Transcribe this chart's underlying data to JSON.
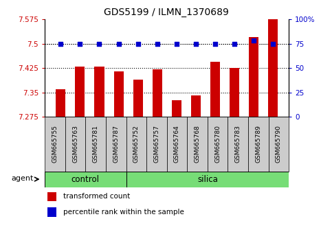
{
  "title": "GDS5199 / ILMN_1370689",
  "samples": [
    "GSM665755",
    "GSM665763",
    "GSM665781",
    "GSM665787",
    "GSM665752",
    "GSM665757",
    "GSM665764",
    "GSM665768",
    "GSM665780",
    "GSM665783",
    "GSM665789",
    "GSM665790"
  ],
  "transformed_count": [
    7.36,
    7.43,
    7.43,
    7.415,
    7.39,
    7.42,
    7.325,
    7.34,
    7.445,
    7.425,
    7.52,
    7.575
  ],
  "percentile_rank": [
    75,
    75,
    75,
    75,
    75,
    75,
    75,
    75,
    75,
    75,
    78,
    75
  ],
  "groups": {
    "control": [
      0,
      3
    ],
    "silica": [
      4,
      11
    ]
  },
  "ylim_left": [
    7.275,
    7.575
  ],
  "ylim_right": [
    0,
    100
  ],
  "yticks_left": [
    7.275,
    7.35,
    7.425,
    7.5,
    7.575
  ],
  "ytick_labels_left": [
    "7.275",
    "7.35",
    "7.425",
    "7.5",
    "7.575"
  ],
  "yticks_right": [
    0,
    25,
    50,
    75,
    100
  ],
  "ytick_labels_right": [
    "0",
    "25",
    "50",
    "75",
    "100%"
  ],
  "bar_color": "#cc0000",
  "dot_color": "#0000cc",
  "group_color": "#77dd77",
  "tick_box_color": "#cccccc",
  "bar_width": 0.5
}
